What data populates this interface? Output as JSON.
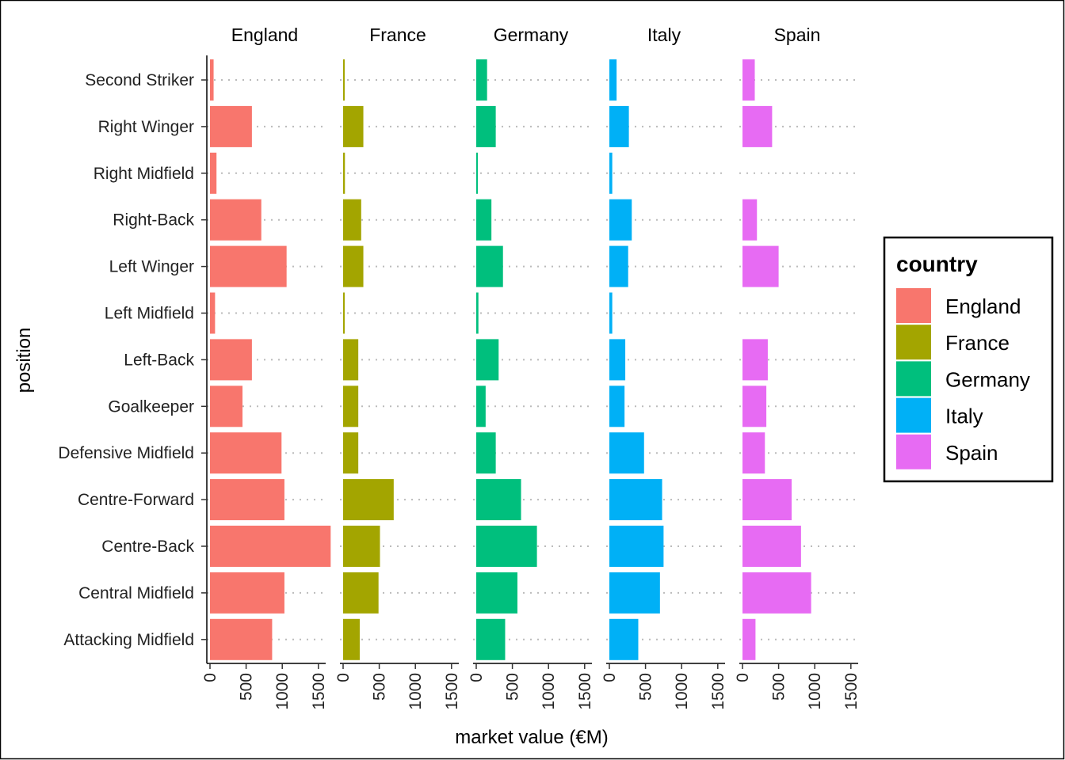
{
  "chart_data": {
    "type": "bar",
    "orientation": "horizontal",
    "facet_by": "country",
    "xlabel": "market value (€M)",
    "ylabel": "position",
    "xlim": [
      0,
      1700
    ],
    "x_ticks": [
      0,
      500,
      1000,
      1500
    ],
    "grid": "dotted horizontal at each category",
    "legend": {
      "title": "country",
      "placement": "right"
    },
    "categories": [
      "Second Striker",
      "Right Winger",
      "Right Midfield",
      "Right-Back",
      "Left Winger",
      "Left Midfield",
      "Left-Back",
      "Goalkeeper",
      "Defensive Midfield",
      "Centre-Forward",
      "Centre-Back",
      "Central Midfield",
      "Attacking Midfield"
    ],
    "series": [
      {
        "name": "England",
        "color": "#F8766D",
        "values": [
          50,
          580,
          90,
          710,
          1060,
          70,
          580,
          450,
          990,
          1030,
          1670,
          1030,
          860
        ]
      },
      {
        "name": "France",
        "color": "#A3A500",
        "values": [
          15,
          280,
          25,
          250,
          280,
          20,
          210,
          210,
          210,
          700,
          510,
          490,
          230
        ]
      },
      {
        "name": "Germany",
        "color": "#00BF7D",
        "values": [
          150,
          270,
          15,
          210,
          370,
          30,
          310,
          130,
          270,
          620,
          840,
          570,
          400
        ]
      },
      {
        "name": "Italy",
        "color": "#00B0F6",
        "values": [
          100,
          270,
          40,
          310,
          260,
          40,
          220,
          210,
          480,
          730,
          750,
          700,
          400
        ]
      },
      {
        "name": "Spain",
        "color": "#E76BF3",
        "values": [
          170,
          410,
          0,
          200,
          500,
          0,
          350,
          330,
          310,
          680,
          810,
          950,
          180
        ]
      }
    ]
  }
}
